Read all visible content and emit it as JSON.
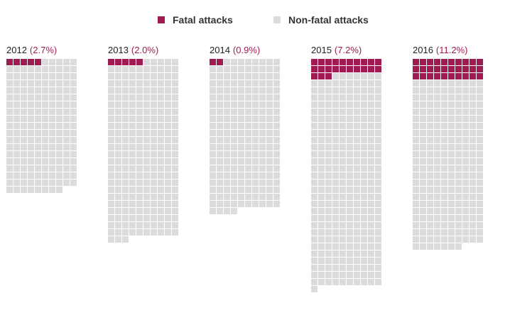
{
  "legend": {
    "fatal_label": "Fatal attacks",
    "nonfatal_label": "Non-fatal attacks"
  },
  "colors": {
    "fatal": "#a01b52",
    "nonfatal": "#dcdcdc",
    "pct_text": "#a01b52"
  },
  "chart_data": {
    "type": "waffle",
    "columns_per_grid": 10,
    "series_names": [
      "Fatal attacks",
      "Non-fatal attacks"
    ],
    "panels": [
      {
        "year": "2012",
        "pct_label": "(2.7%)",
        "fatal": 5,
        "total": 188
      },
      {
        "year": "2013",
        "pct_label": "(2.0%)",
        "fatal": 5,
        "total": 253
      },
      {
        "year": "2014",
        "pct_label": "(0.9%)",
        "fatal": 2,
        "total": 214
      },
      {
        "year": "2015",
        "pct_label": "(7.2%)",
        "fatal": 23,
        "total": 321
      },
      {
        "year": "2016",
        "pct_label": "(11.2%)",
        "fatal": 30,
        "total": 267
      }
    ]
  }
}
